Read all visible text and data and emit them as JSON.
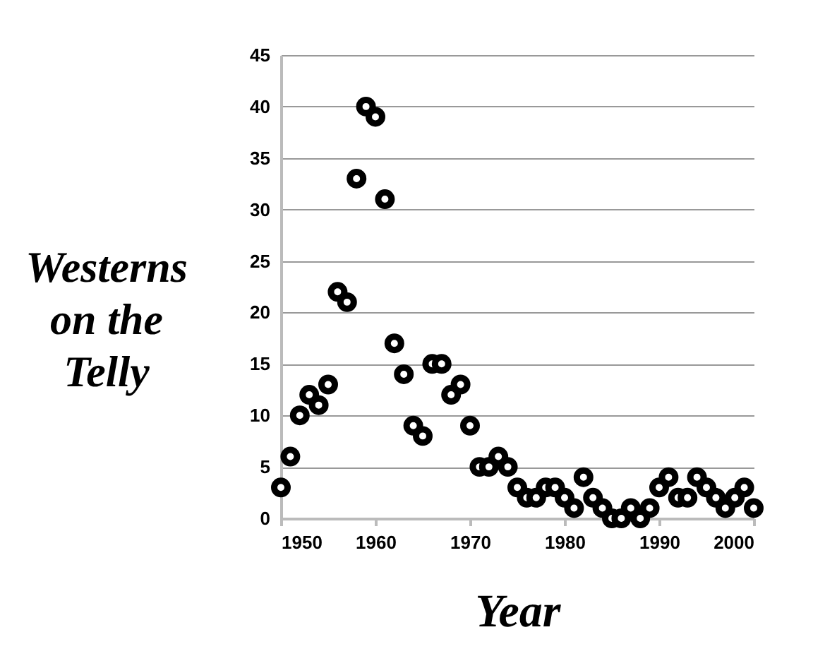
{
  "chart_data": {
    "type": "scatter",
    "xlabel": "Year",
    "ylabel": "Westerns on the Telly",
    "x": [
      1950,
      1951,
      1952,
      1953,
      1954,
      1955,
      1956,
      1957,
      1958,
      1959,
      1960,
      1961,
      1962,
      1963,
      1964,
      1965,
      1966,
      1967,
      1968,
      1969,
      1970,
      1971,
      1972,
      1973,
      1974,
      1975,
      1976,
      1977,
      1978,
      1979,
      1980,
      1981,
      1982,
      1983,
      1984,
      1985,
      1986,
      1987,
      1988,
      1989,
      1990,
      1991,
      1992,
      1993,
      1994,
      1995,
      1996,
      1997,
      1998,
      1999,
      2000
    ],
    "series": [
      {
        "color": "#000000",
        "values": [
          3,
          6,
          10,
          12,
          11,
          13,
          22,
          21,
          33,
          40,
          39,
          31,
          17,
          14,
          9,
          8,
          15,
          15,
          12,
          13,
          9,
          5,
          5,
          6,
          5,
          3,
          2,
          2,
          3,
          3,
          2,
          1,
          4,
          2,
          1,
          0,
          0,
          1,
          0,
          1,
          3,
          4,
          2,
          2,
          4,
          3,
          2,
          1,
          2,
          3,
          1
        ]
      }
    ],
    "xlim": [
      1950,
      2000
    ],
    "xticks": [
      1950,
      1960,
      1970,
      1980,
      1990,
      2000
    ],
    "ylim": [
      0,
      45
    ],
    "yticks": [
      0,
      5,
      10,
      15,
      20,
      25,
      30,
      35,
      40,
      45
    ],
    "grid": "y",
    "marker": "circle",
    "legend": false
  }
}
